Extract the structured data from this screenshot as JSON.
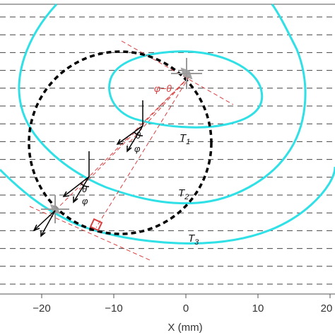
{
  "colors": {
    "contour": "#2fe0e6",
    "construction": "#d94040",
    "circle": "#000000",
    "gridline": "#444444",
    "marker": "#9a9a9a",
    "arrow": "#000000"
  },
  "axis": {
    "xlabel": "X (mm)",
    "xticks": [
      {
        "value": -20,
        "label": "−20"
      },
      {
        "value": -10,
        "label": "−10"
      },
      {
        "value": 0,
        "label": "0"
      },
      {
        "value": 10,
        "label": "10"
      },
      {
        "value": 20,
        "label": "20"
      }
    ]
  },
  "labels": {
    "t1": "T",
    "t1_sub": "1",
    "t2": "T",
    "t2_sub": "2",
    "t3": "T",
    "t3_sub": "3",
    "phi_minus_theta": "φ−θ",
    "theta_upper": "θ",
    "phi_upper": "φ",
    "theta_lower": "θ",
    "phi_lower": "φ"
  },
  "icons": {
    "source": "cross-marker-icon",
    "receiver": "cross-marker-icon",
    "right_angle": "right-angle-icon"
  }
}
